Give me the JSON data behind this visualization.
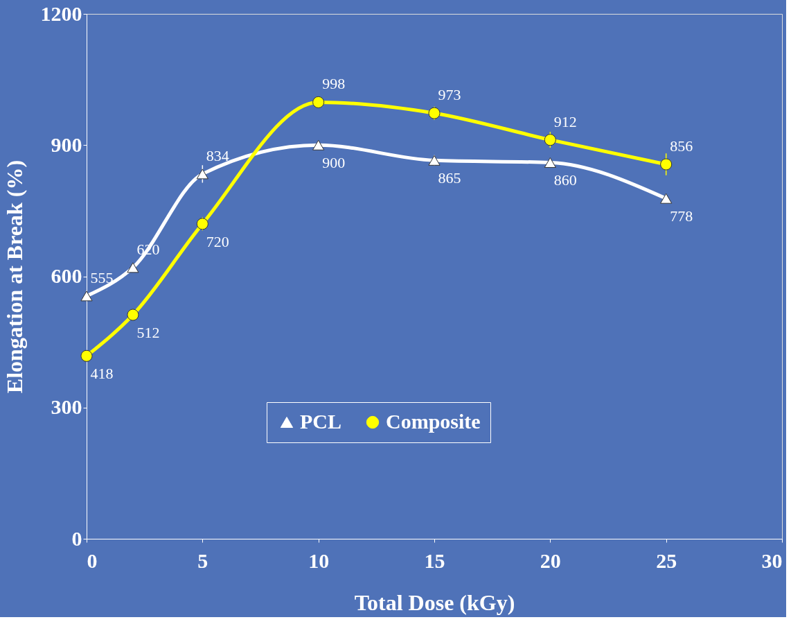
{
  "chart_data": {
    "type": "line",
    "xlabel": "Total Dose (kGy)",
    "ylabel": "Elongation at Break (%)",
    "x": [
      0,
      2,
      5,
      10,
      15,
      20,
      25
    ],
    "series": [
      {
        "name": "PCL",
        "color": "#ffffff",
        "marker": "triangle",
        "values": [
          555,
          620,
          834,
          900,
          865,
          860,
          778
        ],
        "errors": [
          12,
          10,
          20,
          10,
          12,
          10,
          10
        ]
      },
      {
        "name": "Composite",
        "color": "#ffff00",
        "marker": "circle",
        "values": [
          418,
          512,
          720,
          998,
          973,
          912,
          856
        ],
        "errors": [
          10,
          10,
          15,
          12,
          15,
          18,
          25
        ]
      }
    ],
    "xlim": [
      0,
      30
    ],
    "xticks": [
      0,
      5,
      10,
      15,
      20,
      25,
      30
    ],
    "ylim": [
      0,
      1200
    ],
    "yticks": [
      0,
      300,
      600,
      900,
      1200
    ],
    "grid": false,
    "legend": "bottom",
    "data_labels": true,
    "line_style": "solid"
  }
}
